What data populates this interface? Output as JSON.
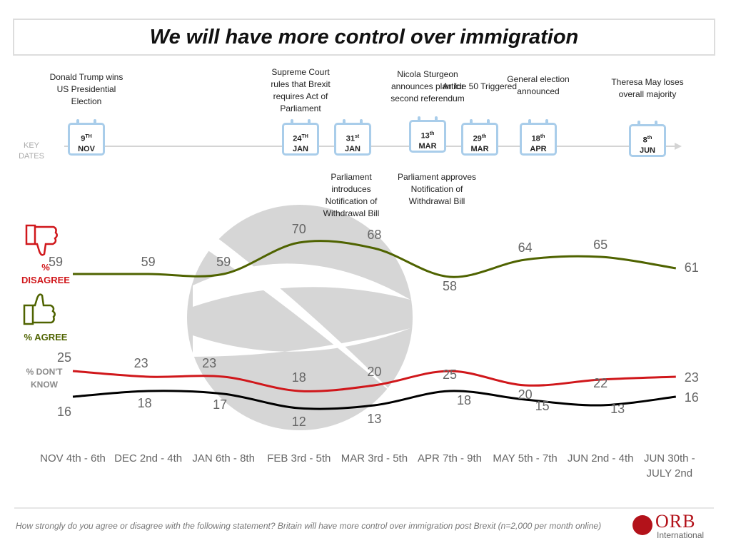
{
  "chart_data": {
    "type": "line",
    "title": "We will have more control over immigration",
    "categories": [
      "NOV 4th - 6th",
      "DEC 2nd - 4th",
      "JAN 6th - 8th",
      "FEB 3rd - 5th",
      "MAR 3rd - 5th",
      "APR 7th - 9th",
      "MAY 5th - 7th",
      "JUN 2nd - 4th",
      "JUN 30th - JULY 2nd"
    ],
    "series": [
      {
        "name": "% DISAGREE",
        "color": "#4f6300",
        "label_color": "#d0171b",
        "values": [
          59,
          59,
          59,
          70,
          68,
          58,
          64,
          65,
          61
        ]
      },
      {
        "name": "% AGREE",
        "color": "#d0171b",
        "label_color": "#4f6300",
        "values": [
          25,
          23,
          23,
          18,
          20,
          25,
          20,
          22,
          23
        ]
      },
      {
        "name": "% DON'T KNOW",
        "color": "#000000",
        "label_color": "#8a8a8a",
        "values": [
          16,
          18,
          17,
          12,
          13,
          18,
          15,
          13,
          16
        ]
      }
    ],
    "ylim": [
      0,
      75
    ]
  },
  "key_dates": {
    "label": "KEY DATES",
    "events": [
      {
        "label": "Donald Trump wins US Presidential Election",
        "day": "9",
        "suffix": "TH",
        "month": "NOV"
      },
      {
        "label": "Supreme Court rules that Brexit requires Act of Parliament",
        "day": "24",
        "suffix": "TH",
        "month": "JAN"
      },
      {
        "label": "Parliament introduces Notification of Withdrawal Bill",
        "day": "31",
        "suffix": "st",
        "month": "JAN"
      },
      {
        "label": "Nicola Sturgeon announces plan for second referendum",
        "day": "13",
        "suffix": "th",
        "month": "MAR"
      },
      {
        "label": "Article 50 Triggered",
        "day": "29",
        "suffix": "th",
        "month": "MAR"
      },
      {
        "label": "General election announced",
        "day": "18",
        "suffix": "th",
        "month": "APR"
      },
      {
        "label": "Theresa May loses overall majority",
        "day": "8",
        "suffix": "th",
        "month": "JUN"
      }
    ],
    "notes": [
      "Parliament approves Notification of Withdrawal Bill"
    ]
  },
  "footer": {
    "question": "How strongly do you agree or disagree with the following statement?  Britain will have more control over immigration post Brexit (n=2,000 per month online)",
    "logo": "ORB",
    "logo_sub": "International"
  }
}
